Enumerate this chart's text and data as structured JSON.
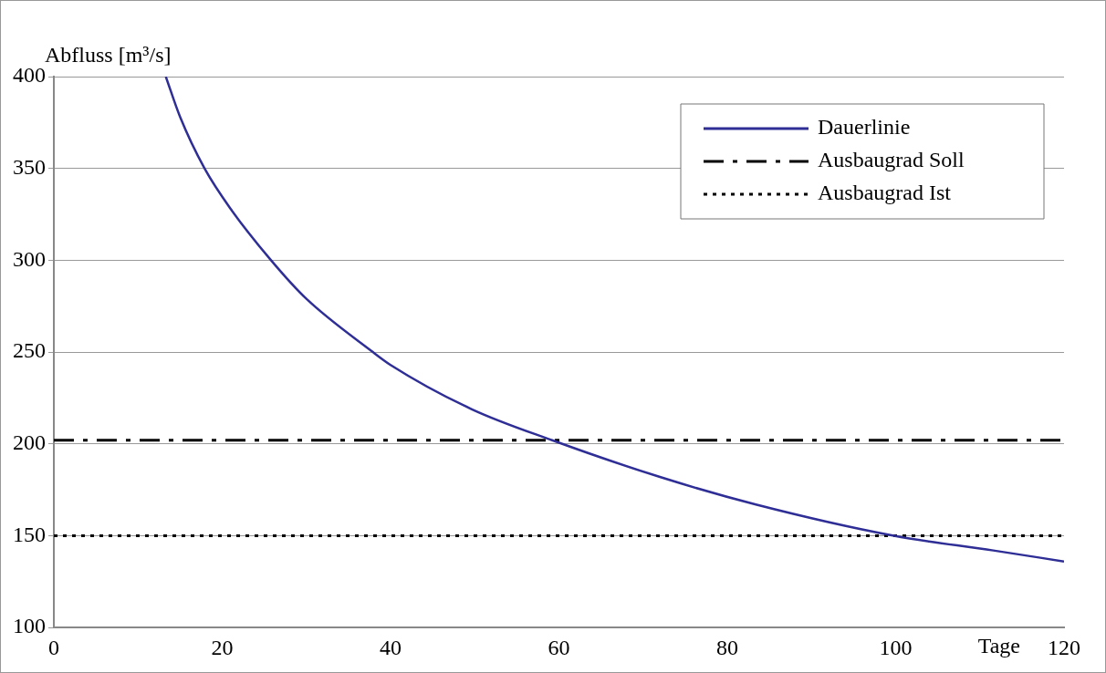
{
  "chart_data": {
    "type": "line",
    "xlabel": "Tage",
    "ylabel": "Abfluss [m³/s]",
    "xlim": [
      0,
      120
    ],
    "xticks": [
      0,
      20,
      40,
      60,
      80,
      100,
      120
    ],
    "ylim": [
      100,
      400
    ],
    "yticks": [
      100,
      150,
      200,
      250,
      300,
      350,
      400
    ],
    "grid": "y",
    "legend": "top right",
    "marker": "none",
    "series": [
      {
        "name": "Dauerlinie",
        "color": "#2e2e96",
        "line_style": "solid",
        "x": [
          13.3,
          15,
          17.9,
          21,
          25.8,
          30,
          37.9,
          40,
          49.6,
          59.2,
          72,
          83.4,
          99.8,
          111.6,
          120
        ],
        "values": [
          400,
          378,
          350,
          328,
          300,
          279,
          250,
          243,
          219,
          202,
          182,
          167,
          150,
          142,
          136
        ]
      },
      {
        "name": "Ausbaugrad Soll",
        "color": "#000000",
        "line_style": "dashed",
        "x": [
          0,
          120
        ],
        "values": [
          202,
          202
        ]
      },
      {
        "name": "Ausbaugrad Ist",
        "color": "#000000",
        "line_style": "dotted",
        "x": [
          0,
          120
        ],
        "values": [
          150,
          150
        ]
      }
    ]
  }
}
